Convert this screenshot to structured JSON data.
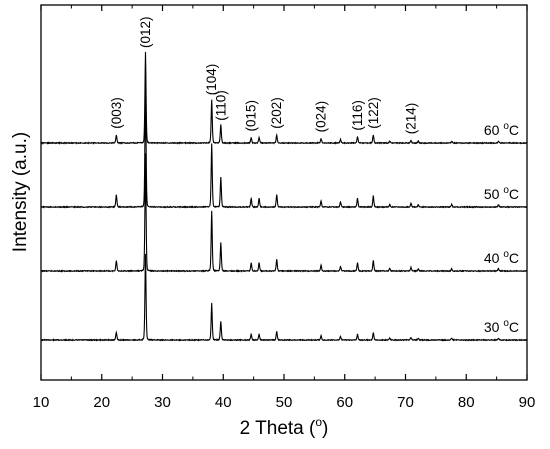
{
  "chart_data": {
    "type": "line",
    "xlabel": "2 Theta (",
    "xlabel_unit": "o",
    "xlabel_close": ")",
    "ylabel": "Intensity (a.u.)",
    "xlim": [
      10,
      90
    ],
    "x_ticks": [
      10,
      20,
      30,
      40,
      50,
      60,
      70,
      80,
      90
    ],
    "y_ticks_labeled": false,
    "grid": false,
    "legend": "inline labels at right of each trace",
    "peaks": [
      {
        "pos": 22.4,
        "label": "(003)",
        "rel": [
          0.09,
          0.09,
          0.1,
          0.09
        ]
      },
      {
        "pos": 27.2,
        "label": "(012)",
        "rel": [
          1.0,
          1.0,
          1.0,
          1.0
        ]
      },
      {
        "pos": 38.1,
        "label": "(104)",
        "rel": [
          0.43,
          0.51,
          0.51,
          0.48
        ]
      },
      {
        "pos": 39.6,
        "label": "(110)",
        "rel": [
          0.22,
          0.24,
          0.24,
          0.2
        ]
      },
      {
        "pos": 44.6,
        "label": "(015)",
        "rel": [
          0.07,
          0.07,
          0.07,
          0.06
        ]
      },
      {
        "pos": 45.9,
        "label": "",
        "rel": [
          0.07,
          0.07,
          0.07,
          0.06
        ]
      },
      {
        "pos": 48.8,
        "label": "(202)",
        "rel": [
          0.1,
          0.1,
          0.1,
          0.09
        ]
      },
      {
        "pos": 56.1,
        "label": "(024)",
        "rel": [
          0.05,
          0.05,
          0.05,
          0.05
        ]
      },
      {
        "pos": 59.3,
        "label": "",
        "rel": [
          0.04,
          0.04,
          0.04,
          0.04
        ]
      },
      {
        "pos": 62.1,
        "label": "(116)",
        "rel": [
          0.07,
          0.07,
          0.07,
          0.07
        ]
      },
      {
        "pos": 64.7,
        "label": "(122)",
        "rel": [
          0.09,
          0.09,
          0.09,
          0.09
        ]
      },
      {
        "pos": 67.4,
        "label": "",
        "rel": [
          0.02,
          0.02,
          0.02,
          0.02
        ]
      },
      {
        "pos": 70.9,
        "label": "(214)",
        "rel": [
          0.03,
          0.03,
          0.03,
          0.03
        ]
      },
      {
        "pos": 72.1,
        "label": "",
        "rel": [
          0.02,
          0.02,
          0.02,
          0.02
        ]
      },
      {
        "pos": 77.6,
        "label": "",
        "rel": [
          0.02,
          0.02,
          0.02,
          0.02
        ]
      },
      {
        "pos": 85.3,
        "label": "",
        "rel": [
          0.02,
          0.02,
          0.02,
          0.02
        ]
      }
    ],
    "series": [
      {
        "name": "30 °C",
        "label_text": "30 ",
        "label_sup": "o",
        "label_unit": "C"
      },
      {
        "name": "40 °C",
        "label_text": "40 ",
        "label_sup": "o",
        "label_unit": "C"
      },
      {
        "name": "50 °C",
        "label_text": "50 ",
        "label_sup": "o",
        "label_unit": "C"
      },
      {
        "name": "60 °C",
        "label_text": "60 ",
        "label_sup": "o",
        "label_unit": "C"
      }
    ],
    "line_color": "#000000"
  }
}
